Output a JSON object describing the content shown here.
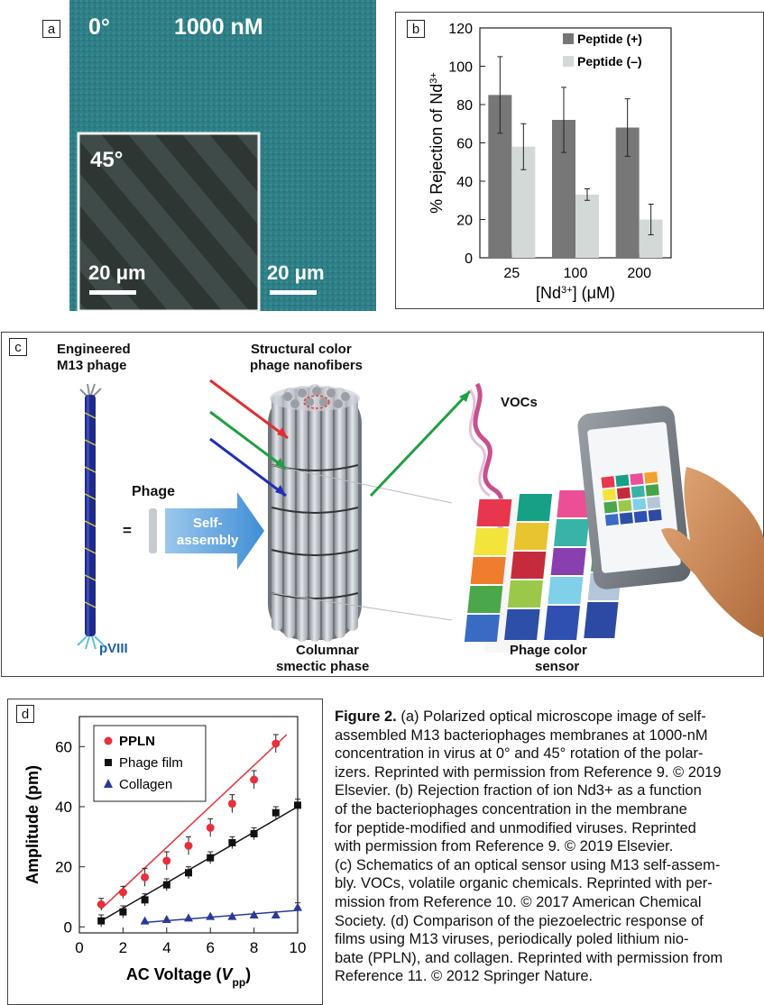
{
  "panel_a": {
    "label": "a",
    "angle_main": "0°",
    "concentration": "1000 nM",
    "angle_inset": "45°",
    "scale_inset": "20 μm",
    "scale_main": "20 μm"
  },
  "panel_b": {
    "label": "b",
    "chart_data": {
      "type": "bar",
      "categories": [
        "25",
        "100",
        "200"
      ],
      "series": [
        {
          "name": "Peptide (+)",
          "values": [
            85,
            72,
            68
          ],
          "errors": [
            20,
            17,
            15
          ],
          "color": "#777777"
        },
        {
          "name": "Peptide (–)",
          "values": [
            58,
            33,
            20
          ],
          "errors": [
            12,
            3,
            8
          ],
          "color": "#d3d9d6"
        }
      ],
      "ylabel": "% Rejection of Nd3+",
      "xlabel": "[Nd3+] (μM)",
      "ylim": [
        0,
        120
      ],
      "yticks": [
        0,
        20,
        40,
        60,
        80,
        100,
        120
      ],
      "legend": "top-right"
    }
  },
  "panel_c": {
    "label": "c",
    "engineered_1": "Engineered",
    "engineered_2": "M13 phage",
    "structural_1": "Structural color",
    "structural_2": "phage nanofibers",
    "vocs": "VOCs",
    "phage": "Phage",
    "equals": "=",
    "self_1": "Self-",
    "self_2": "assembly",
    "pviii": "pVIII",
    "columnar_1": "Columnar",
    "columnar_2": "smectic phase",
    "sensor_1": "Phage color",
    "sensor_2": "sensor"
  },
  "panel_d": {
    "label": "d",
    "chart_data": {
      "type": "scatter",
      "series": [
        {
          "name": "PPLN",
          "color": "#e8303a",
          "marker": "circle",
          "x": [
            1,
            2,
            3,
            4,
            5,
            6,
            7,
            8,
            9
          ],
          "y": [
            7.5,
            11.5,
            16.5,
            22,
            27,
            33,
            41,
            49,
            61
          ],
          "err": [
            2,
            2,
            3,
            3,
            3,
            3,
            3,
            3,
            3
          ],
          "fit": [
            [
              1,
              6
            ],
            [
              9.5,
              64
            ]
          ]
        },
        {
          "name": "Phage film",
          "color": "#111111",
          "marker": "square",
          "x": [
            1,
            2,
            3,
            4,
            5,
            6,
            7,
            8,
            9,
            10
          ],
          "y": [
            2,
            5,
            9,
            14,
            18,
            23,
            28,
            31,
            38,
            40.5
          ],
          "err": [
            2,
            2,
            2,
            2,
            2,
            2,
            2,
            2,
            2,
            2
          ],
          "fit": [
            [
              1,
              2
            ],
            [
              10,
              40
            ]
          ]
        },
        {
          "name": "Collagen",
          "color": "#2a3a9a",
          "marker": "triangle",
          "x": [
            3,
            4,
            5,
            6,
            7,
            8,
            9,
            10
          ],
          "y": [
            2,
            2.5,
            3,
            3.5,
            3.5,
            4,
            4,
            6.5
          ],
          "err": [
            0,
            0,
            0,
            0,
            0,
            0,
            0,
            1.5
          ],
          "fit": [
            [
              3,
              1.5
            ],
            [
              10,
              5.5
            ]
          ]
        }
      ],
      "xlabel": "AC Voltage (Vpp)",
      "ylabel": "Amplitude (pm)",
      "xlim": [
        0,
        10
      ],
      "ylim": [
        -2,
        70
      ],
      "xticks": [
        0,
        2,
        4,
        6,
        8,
        10
      ],
      "yticks": [
        0,
        20,
        40,
        60
      ],
      "legend": "top-left"
    }
  },
  "caption": {
    "lines": [
      "(a) Polarized optical microscope image of self-",
      "assembled M13 bacteriophages membranes at 1000-nM",
      "concentration in virus at 0° and 45° rotation of the polar-",
      "izers. Reprinted with permission from Reference 9. © 2019",
      "Elsevier. (b) Rejection fraction of ion Nd3+ as a function",
      "of the bacteriophages concentration in the membrane",
      "for peptide-modified and unmodified viruses. Reprinted",
      "with permission from Reference 9. © 2019 Elsevier.",
      "(c) Schematics of an optical sensor using M13 self-assem-",
      "bly. VOCs, volatile organic chemicals. Reprinted with per-",
      "mission from Reference 10. © 2017 American Chemical",
      "Society. (d) Comparison of the piezoelectric response of",
      "films using M13 viruses, periodically poled lithium nio-",
      "bate (PPLN), and collagen. Reprinted with permission from",
      "Reference 11. © 2012 Springer Nature."
    ],
    "figure_label": "Figure 2."
  }
}
